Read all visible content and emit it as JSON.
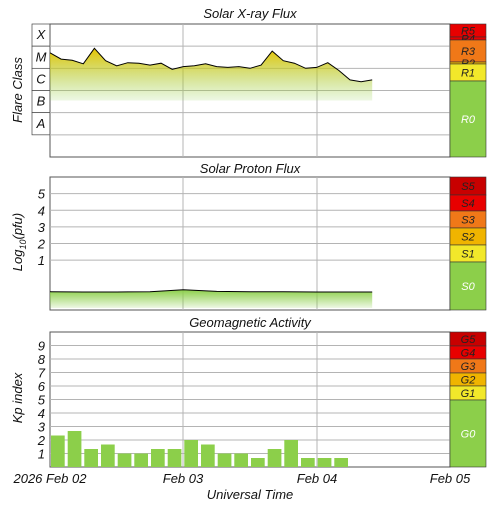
{
  "colors": {
    "grid": "#b4b4b4",
    "trace": "#000000",
    "gradient_top": "#e8c400",
    "gradient_bottom": "#8ccf4a",
    "bar": "#8ccf4a",
    "level_green": "#8ccf4a",
    "level_yellow": "#f2e82a",
    "level_gold": "#f0b400",
    "level_orange": "#f07818",
    "level_red": "#e80000",
    "level_darkred": "#c80000"
  },
  "x_axis": {
    "label": "Universal Time",
    "ticks": [
      "2026 Feb 02",
      "Feb 03",
      "Feb 04",
      "Feb 05"
    ],
    "start": "2026-02-02T00:00",
    "end": "2026-02-05T00:00"
  },
  "panels": {
    "xray": {
      "title": "Solar X-ray Flux",
      "ylabel": "Flare Class",
      "classes": [
        "X",
        "M",
        "C",
        "B",
        "A"
      ],
      "scale": [
        {
          "label": "R5",
          "color": "#e80000"
        },
        {
          "label": "R4",
          "color": "#e80000"
        },
        {
          "label": "R3",
          "color": "#f07818"
        },
        {
          "label": "R2",
          "color": "#f0b400"
        },
        {
          "label": "R1",
          "color": "#f2e82a"
        },
        {
          "label": "R0",
          "color": "#8ccf4a"
        }
      ]
    },
    "proton": {
      "title": "Solar Proton Flux",
      "ylabel_main": "Log",
      "ylabel_sub": "10",
      "ylabel_tail": "(pfu)",
      "ticks": [
        "5",
        "4",
        "3",
        "2",
        "1"
      ],
      "scale": [
        {
          "label": "S5",
          "color": "#c80000"
        },
        {
          "label": "S4",
          "color": "#e80000"
        },
        {
          "label": "S3",
          "color": "#f07818"
        },
        {
          "label": "S2",
          "color": "#f0b400"
        },
        {
          "label": "S1",
          "color": "#f2e82a"
        },
        {
          "label": "S0",
          "color": "#8ccf4a"
        }
      ]
    },
    "kp": {
      "title": "Geomagnetic Activity",
      "ylabel": "Kp index",
      "ticks": [
        "9",
        "8",
        "7",
        "6",
        "5",
        "4",
        "3",
        "2",
        "1"
      ],
      "scale": [
        {
          "label": "G5",
          "color": "#c80000"
        },
        {
          "label": "G4",
          "color": "#e80000"
        },
        {
          "label": "G3",
          "color": "#f07818"
        },
        {
          "label": "G2",
          "color": "#f0b400"
        },
        {
          "label": "G1",
          "color": "#f2e82a"
        },
        {
          "label": "G0",
          "color": "#8ccf4a"
        }
      ]
    }
  },
  "chart_data": [
    {
      "type": "line",
      "title": "Solar X-ray Flux",
      "ylabel": "Flare Class",
      "y_scale": "log",
      "y_unit": "W/m^2",
      "ylim": [
        1e-09,
        0.001
      ],
      "x": [
        "2026-02-02T00:00",
        "2026-02-02T02:00",
        "2026-02-02T04:00",
        "2026-02-02T06:00",
        "2026-02-02T08:00",
        "2026-02-02T10:00",
        "2026-02-02T12:00",
        "2026-02-02T14:00",
        "2026-02-02T16:00",
        "2026-02-02T18:00",
        "2026-02-02T20:00",
        "2026-02-02T22:00",
        "2026-02-03T00:00",
        "2026-02-03T02:00",
        "2026-02-03T04:00",
        "2026-02-03T06:00",
        "2026-02-03T08:00",
        "2026-02-03T10:00",
        "2026-02-03T12:00",
        "2026-02-03T14:00",
        "2026-02-03T16:00",
        "2026-02-03T18:00",
        "2026-02-03T20:00",
        "2026-02-03T22:00",
        "2026-02-04T00:00",
        "2026-02-04T02:00",
        "2026-02-04T04:00",
        "2026-02-04T06:00",
        "2026-02-04T08:00",
        "2026-02-04T10:00"
      ],
      "y": [
        5e-05,
        2.6e-05,
        2.3e-05,
        1.6e-05,
        8e-05,
        2.2e-05,
        1.3e-05,
        1.8e-05,
        1.7e-05,
        1.4e-05,
        1.7e-05,
        9e-06,
        1.2e-05,
        1.3e-05,
        1.6e-05,
        1.2e-05,
        1.1e-05,
        1.2e-05,
        1e-05,
        1.4e-05,
        6e-05,
        2.2e-05,
        1.7e-05,
        1e-05,
        1.1e-05,
        1.8e-05,
        8e-06,
        3e-06,
        2.5e-06,
        3e-06
      ]
    },
    {
      "type": "line",
      "title": "Solar Proton Flux",
      "ylabel": "Log10(pfu)",
      "ylim": [
        -2,
        6
      ],
      "x": [
        "2026-02-02T00:00",
        "2026-02-02T06:00",
        "2026-02-02T12:00",
        "2026-02-02T18:00",
        "2026-02-03T00:00",
        "2026-02-03T06:00",
        "2026-02-03T12:00",
        "2026-02-03T18:00",
        "2026-02-04T00:00",
        "2026-02-04T06:00",
        "2026-02-04T10:00"
      ],
      "y": [
        -0.9,
        -0.92,
        -0.92,
        -0.9,
        -0.78,
        -0.88,
        -0.9,
        -0.9,
        -0.92,
        -0.92,
        -0.92
      ]
    },
    {
      "type": "bar",
      "title": "Geomagnetic Activity",
      "ylabel": "Kp index",
      "ylim": [
        0,
        10
      ],
      "categories": [
        "2026-02-02T00:00",
        "2026-02-02T03:00",
        "2026-02-02T06:00",
        "2026-02-02T09:00",
        "2026-02-02T12:00",
        "2026-02-02T15:00",
        "2026-02-02T18:00",
        "2026-02-02T21:00",
        "2026-02-03T00:00",
        "2026-02-03T03:00",
        "2026-02-03T06:00",
        "2026-02-03T09:00",
        "2026-02-03T12:00",
        "2026-02-03T15:00",
        "2026-02-03T18:00",
        "2026-02-03T21:00",
        "2026-02-04T00:00",
        "2026-02-04T03:00",
        "2026-02-04T06:00"
      ],
      "values": [
        2.33,
        2.67,
        1.33,
        1.67,
        1.0,
        1.0,
        1.33,
        1.33,
        2.0,
        1.67,
        1.0,
        1.0,
        0.67,
        1.33,
        2.0,
        0.67,
        0.67,
        0.67,
        0.0
      ]
    }
  ]
}
